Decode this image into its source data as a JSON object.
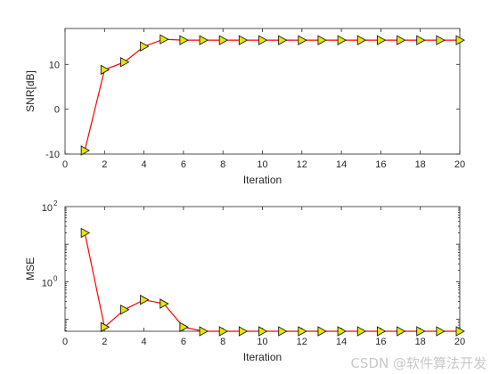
{
  "chart_data": [
    {
      "type": "line",
      "x": [
        1,
        2,
        3,
        4,
        5,
        6,
        7,
        8,
        9,
        10,
        11,
        12,
        13,
        14,
        15,
        16,
        17,
        18,
        19,
        20
      ],
      "series": [
        {
          "values": [
            -9.2,
            8.8,
            10.5,
            14,
            15.6,
            15.4,
            15.4,
            15.4,
            15.4,
            15.4,
            15.4,
            15.4,
            15.4,
            15.4,
            15.4,
            15.4,
            15.4,
            15.4,
            15.4,
            15.4
          ],
          "line_color": "#ff0000",
          "marker": "triangle-right",
          "marker_color": "#e6e600"
        }
      ],
      "xlabel": "Iteration",
      "ylabel": "SNR[dB]",
      "xlim": [
        0,
        20
      ],
      "ylim": [
        -10,
        18
      ],
      "xticks": [
        0,
        2,
        4,
        6,
        8,
        10,
        12,
        14,
        16,
        18,
        20
      ],
      "yticks": [
        -10,
        0,
        10
      ],
      "ytick_labels": [
        "-10",
        "0",
        "10"
      ],
      "yscale": "linear",
      "grid": false
    },
    {
      "type": "line",
      "x": [
        1,
        2,
        3,
        4,
        5,
        6,
        7,
        8,
        9,
        10,
        11,
        12,
        13,
        14,
        15,
        16,
        17,
        18,
        19,
        20
      ],
      "series": [
        {
          "values": [
            20,
            0.062,
            0.18,
            0.33,
            0.26,
            0.062,
            0.048,
            0.048,
            0.048,
            0.048,
            0.048,
            0.048,
            0.048,
            0.048,
            0.048,
            0.048,
            0.048,
            0.048,
            0.048,
            0.048
          ],
          "line_color": "#ff0000",
          "marker": "triangle-right",
          "marker_color": "#e6e600"
        }
      ],
      "xlabel": "Iteration",
      "ylabel": "MSE",
      "xlim": [
        0,
        20
      ],
      "ylim": [
        0.048,
        100
      ],
      "xticks": [
        0,
        2,
        4,
        6,
        8,
        10,
        12,
        14,
        16,
        18,
        20
      ],
      "yscale": "log",
      "ytick_labels_log": [
        {
          "value": 1,
          "base": "10",
          "exp": "0"
        },
        {
          "value": 100,
          "base": "10",
          "exp": "2"
        }
      ],
      "grid": false
    }
  ],
  "watermark": "CSDN @软件算法开发"
}
